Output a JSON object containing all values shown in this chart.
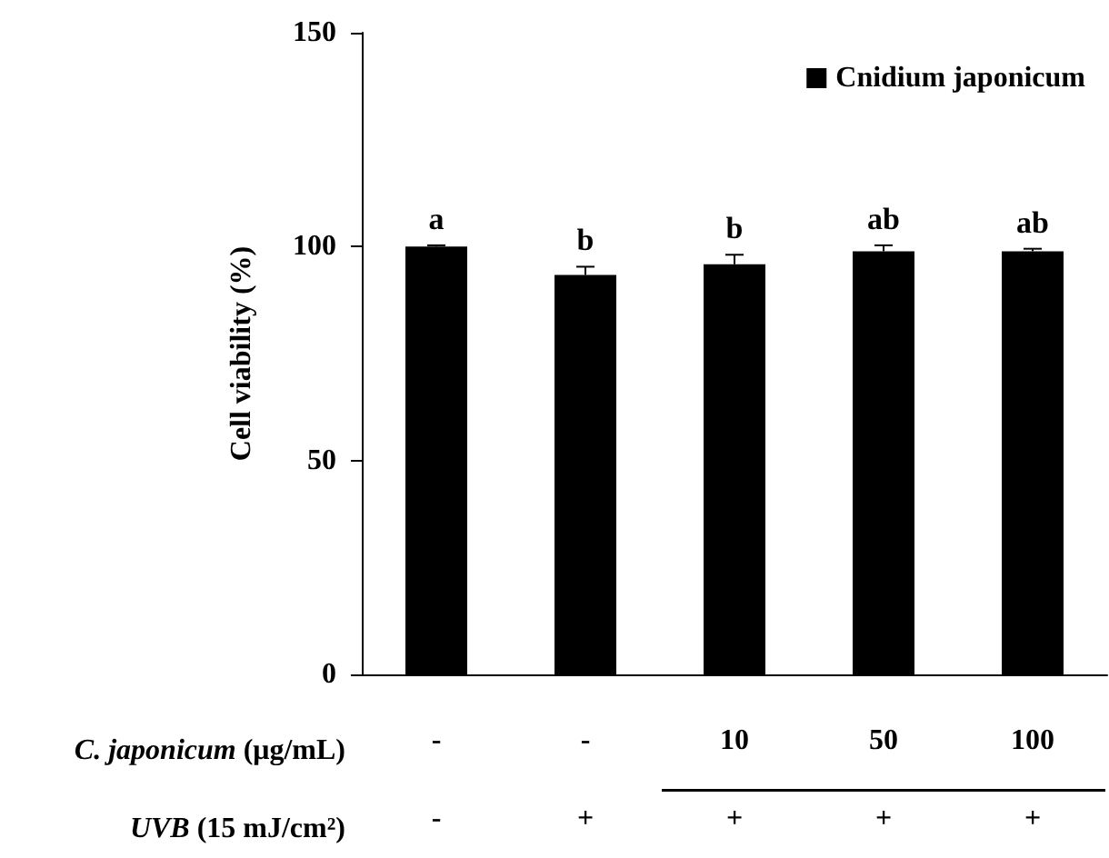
{
  "chart_data": {
    "type": "bar",
    "ylabel": "Cell viability (%)",
    "categories": [
      "-\n-",
      "-\n+",
      "10\n+",
      "50\n+",
      "100\n+"
    ],
    "series": [
      {
        "name": "Cnidium japonicum",
        "color": "#000000",
        "values": [
          100,
          93.4,
          95.9,
          98.9,
          98.9
        ],
        "errors": [
          0.3,
          1.9,
          2.2,
          1.4,
          0.6
        ],
        "value_labels": [
          "a",
          "b",
          "b",
          "ab",
          "ab"
        ]
      }
    ],
    "ylim": [
      0,
      150
    ],
    "yticks": [
      0,
      50,
      100,
      150
    ],
    "grid": false,
    "legend": "top right",
    "annotations": [
      "C. japonicum (μg/mL)",
      "UVB (15 mJ/cm²)"
    ]
  }
}
